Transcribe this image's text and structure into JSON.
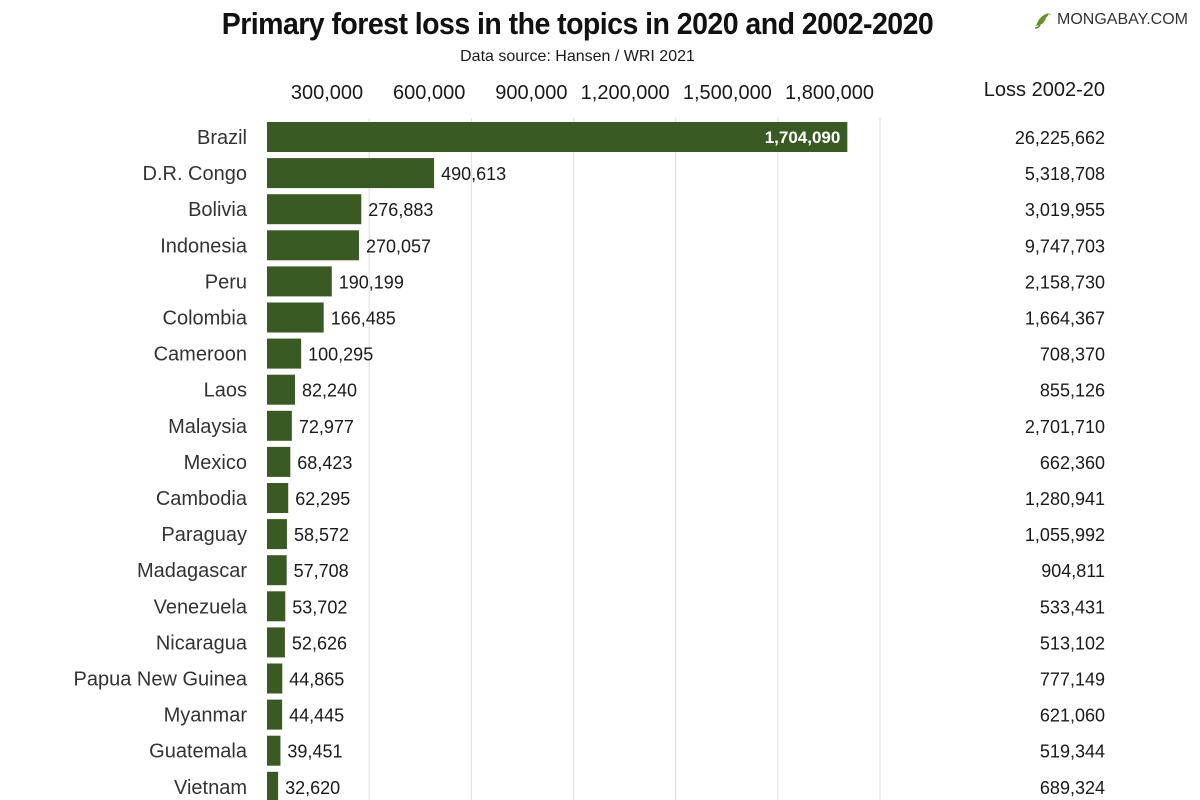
{
  "header": {
    "title": "Primary forest loss in the topics in 2020 and 2002-2020",
    "subtitle": "Data source: Hansen / WRI 2021",
    "brand": "MONGABAY.COM"
  },
  "colors": {
    "bar": "#3a5a24",
    "grid": "#dedede",
    "text": "#1a1a1a",
    "inside_label": "#ffffff"
  },
  "chart_data": {
    "type": "bar",
    "orientation": "horizontal",
    "title": "Primary forest loss in the topics in 2020 and 2002-2020",
    "subtitle": "Data source: Hansen / WRI 2021",
    "xlim": [
      0,
      1800000
    ],
    "x_ticks": [
      300000,
      600000,
      900000,
      1200000,
      1500000,
      1800000
    ],
    "x_tick_labels": [
      "300,000",
      "600,000",
      "900,000",
      "1,200,000",
      "1,500,000",
      "1,800,000"
    ],
    "grid": true,
    "table_column_header": "Loss 2002-20",
    "categories": [
      "Brazil",
      "D.R. Congo",
      "Bolivia",
      "Indonesia",
      "Peru",
      "Colombia",
      "Cameroon",
      "Laos",
      "Malaysia",
      "Mexico",
      "Cambodia",
      "Paraguay",
      "Madagascar",
      "Venezuela",
      "Nicaragua",
      "Papua New Guinea",
      "Myanmar",
      "Guatemala",
      "Vietnam"
    ],
    "values": [
      1704090,
      490613,
      276883,
      270057,
      190199,
      166485,
      100295,
      82240,
      72977,
      68423,
      62295,
      58572,
      57708,
      53702,
      52626,
      44865,
      44445,
      39451,
      32620
    ],
    "value_labels": [
      "1,704,090",
      "490,613",
      "276,883",
      "270,057",
      "190,199",
      "166,485",
      "100,295",
      "82,240",
      "72,977",
      "68,423",
      "62,295",
      "58,572",
      "57,708",
      "53,702",
      "52,626",
      "44,865",
      "44,445",
      "39,451",
      "32,620"
    ],
    "loss_2002_20": [
      26225662,
      5318708,
      3019955,
      9747703,
      2158730,
      1664367,
      708370,
      855126,
      2701710,
      662360,
      1280941,
      1055992,
      904811,
      533431,
      513102,
      777149,
      621060,
      519344,
      689324
    ],
    "loss_2002_20_labels": [
      "26,225,662",
      "5,318,708",
      "3,019,955",
      "9,747,703",
      "2,158,730",
      "1,664,367",
      "708,370",
      "855,126",
      "2,701,710",
      "662,360",
      "1,280,941",
      "1,055,992",
      "904,811",
      "533,431",
      "513,102",
      "777,149",
      "621,060",
      "519,344",
      "689,324"
    ]
  }
}
